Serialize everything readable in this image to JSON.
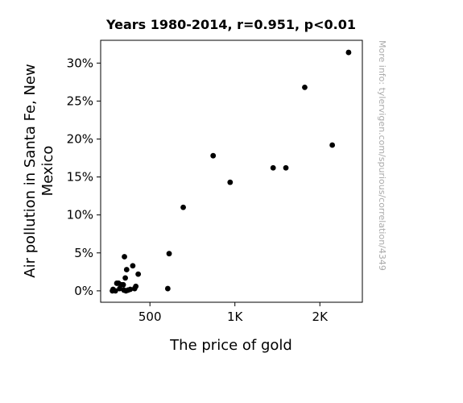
{
  "chart_data": {
    "type": "scatter",
    "title": "Years 1980-2014, r=0.951, p<0.01",
    "xlabel": "The price of gold",
    "ylabel_lines": [
      "Air pollution in Santa Fe, New",
      "Mexico"
    ],
    "watermark": "More info: tylervigen.com/spurious/correlation/4349",
    "xlim": [
      210,
      1750
    ],
    "ylim": [
      -1.5,
      33
    ],
    "x_ticks": [
      {
        "value": 500,
        "label": "500"
      },
      {
        "value": 1000,
        "label": "1K"
      },
      {
        "value": 1500,
        "label": "2K"
      }
    ],
    "y_ticks": [
      {
        "value": 0,
        "label": "0%"
      },
      {
        "value": 5,
        "label": "5%"
      },
      {
        "value": 10,
        "label": "10%"
      },
      {
        "value": 15,
        "label": "15%"
      },
      {
        "value": 20,
        "label": "20%"
      },
      {
        "value": 25,
        "label": "25%"
      },
      {
        "value": 30,
        "label": "30%"
      }
    ],
    "points": [
      {
        "x": 279,
        "y": 0.0
      },
      {
        "x": 283,
        "y": 0.2
      },
      {
        "x": 297,
        "y": 0.0
      },
      {
        "x": 305,
        "y": 1.0
      },
      {
        "x": 315,
        "y": 1.0
      },
      {
        "x": 322,
        "y": 0.3
      },
      {
        "x": 332,
        "y": 0.8
      },
      {
        "x": 343,
        "y": 0.8
      },
      {
        "x": 347,
        "y": 0.1
      },
      {
        "x": 350,
        "y": 4.5
      },
      {
        "x": 355,
        "y": 1.7
      },
      {
        "x": 359,
        "y": 0.0
      },
      {
        "x": 363,
        "y": 2.8
      },
      {
        "x": 371,
        "y": 0.1
      },
      {
        "x": 384,
        "y": 0.2
      },
      {
        "x": 399,
        "y": 3.3
      },
      {
        "x": 410,
        "y": 0.3
      },
      {
        "x": 417,
        "y": 0.6
      },
      {
        "x": 431,
        "y": 2.2
      },
      {
        "x": 605,
        "y": 0.3
      },
      {
        "x": 613,
        "y": 4.9
      },
      {
        "x": 696,
        "y": 11.0
      },
      {
        "x": 872,
        "y": 17.8
      },
      {
        "x": 972,
        "y": 14.3
      },
      {
        "x": 1225,
        "y": 16.2
      },
      {
        "x": 1300,
        "y": 16.2
      },
      {
        "x": 1411,
        "y": 26.8
      },
      {
        "x": 1573,
        "y": 19.2
      },
      {
        "x": 1669,
        "y": 31.4
      }
    ]
  }
}
